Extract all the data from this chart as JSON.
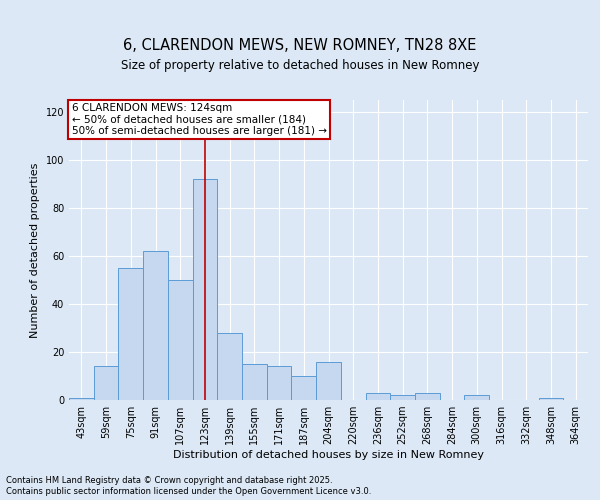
{
  "title": "6, CLARENDON MEWS, NEW ROMNEY, TN28 8XE",
  "subtitle": "Size of property relative to detached houses in New Romney",
  "xlabel": "Distribution of detached houses by size in New Romney",
  "ylabel": "Number of detached properties",
  "categories": [
    "43sqm",
    "59sqm",
    "75sqm",
    "91sqm",
    "107sqm",
    "123sqm",
    "139sqm",
    "155sqm",
    "171sqm",
    "187sqm",
    "204sqm",
    "220sqm",
    "236sqm",
    "252sqm",
    "268sqm",
    "284sqm",
    "300sqm",
    "316sqm",
    "332sqm",
    "348sqm",
    "364sqm"
  ],
  "values": [
    1,
    14,
    55,
    62,
    50,
    92,
    28,
    15,
    14,
    10,
    16,
    0,
    3,
    2,
    3,
    0,
    2,
    0,
    0,
    1,
    0
  ],
  "bar_color": "#c5d8f0",
  "bar_edge_color": "#5b9bd5",
  "highlight_index": 5,
  "highlight_color": "#c00000",
  "ylim": [
    0,
    125
  ],
  "yticks": [
    0,
    20,
    40,
    60,
    80,
    100,
    120
  ],
  "annotation_text": "6 CLARENDON MEWS: 124sqm\n← 50% of detached houses are smaller (184)\n50% of semi-detached houses are larger (181) →",
  "footer_line1": "Contains HM Land Registry data © Crown copyright and database right 2025.",
  "footer_line2": "Contains public sector information licensed under the Open Government Licence v3.0.",
  "bg_color": "#dce8f5",
  "plot_bg_color": "#dce8f5",
  "title_fontsize": 10.5,
  "subtitle_fontsize": 8.5,
  "ylabel_fontsize": 8,
  "xlabel_fontsize": 8,
  "tick_fontsize": 7,
  "annotation_fontsize": 7.5,
  "footer_fontsize": 6.0
}
